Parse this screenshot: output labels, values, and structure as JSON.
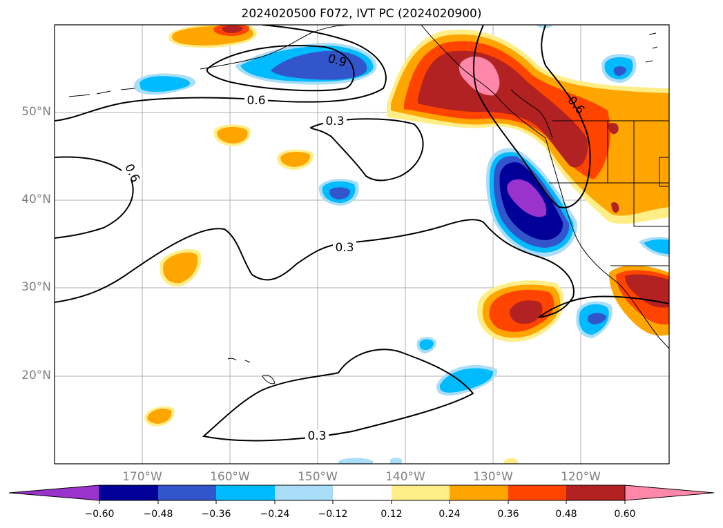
{
  "title": "2024020500 F072, IVT PC (2024020900)",
  "latitude_labels": [
    "50°N",
    "40°N",
    "30°N",
    "20°N"
  ],
  "longitude_labels": [
    "170°W",
    "160°W",
    "150°W",
    "140°W",
    "130°W",
    "120°W"
  ],
  "contour_labels": [
    "0.9",
    "0.6",
    "0.3",
    "0.6",
    "0.3",
    "0.3",
    "0.6"
  ],
  "colorbar": {
    "tick_labels": [
      "−0.60",
      "−0.48",
      "−0.36",
      "−0.24",
      "−0.12",
      "0.12",
      "0.24",
      "0.36",
      "0.48",
      "0.60"
    ],
    "colors": [
      "#9933cc",
      "#000099",
      "#3355cc",
      "#00bbff",
      "#aaddf8",
      "#ffffff",
      "#ffee88",
      "#ffa500",
      "#ff4400",
      "#b22222",
      "#ff88aa"
    ]
  },
  "colors": {
    "pos_1": "#ffee88",
    "pos_2": "#ffa500",
    "pos_3": "#ff4400",
    "pos_4": "#b22222",
    "pos_5": "#ff88aa",
    "neg_1": "#aaddf8",
    "neg_2": "#00bbff",
    "neg_3": "#3355cc",
    "neg_4": "#000099",
    "neg_5": "#9933cc"
  }
}
